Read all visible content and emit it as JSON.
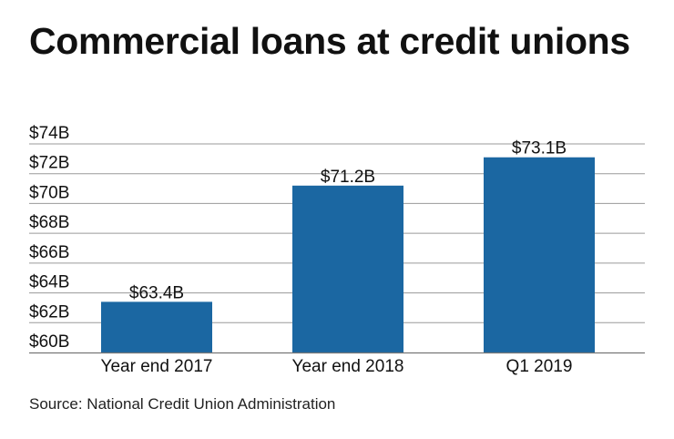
{
  "title": "Commercial loans at credit unions",
  "source": "Source: National Credit Union Administration",
  "colors": {
    "bar": "#1b67a2",
    "grid": "#9a9a9a",
    "text": "#111111"
  },
  "chart_data": {
    "type": "bar",
    "title": "Commercial loans at credit unions",
    "xlabel": "",
    "ylabel": "",
    "categories": [
      "Year end 2017",
      "Year end 2018",
      "Q1 2019"
    ],
    "values": [
      63.4,
      71.2,
      73.1
    ],
    "value_labels": [
      "$63.4B",
      "$71.2B",
      "$73.1B"
    ],
    "ylim": [
      60,
      74
    ],
    "yticks": [
      60,
      62,
      64,
      66,
      68,
      70,
      72,
      74
    ],
    "ytick_labels": [
      "$60B",
      "$62B",
      "$64B",
      "$66B",
      "$68B",
      "$70B",
      "$72B",
      "$74B"
    ],
    "grid": true,
    "legend": "none"
  }
}
